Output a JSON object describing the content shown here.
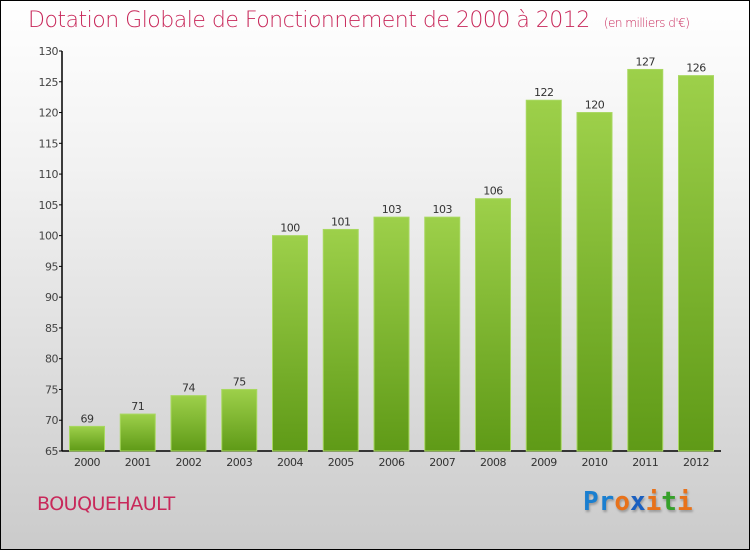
{
  "title": "Dotation Globale de Fonctionnement de 2000 à 2012",
  "subtitle": "(en milliers d'€)",
  "commune": "BOUQUEHAULT",
  "logo": {
    "text": "Proxiti",
    "letters": [
      "P",
      "r",
      "o",
      "x",
      "i",
      "t",
      "i"
    ],
    "colors": [
      "#1a7fd0",
      "#1a7fd0",
      "#e8721a",
      "#1a5fc0",
      "#e8721a",
      "#36a02a",
      "#e8721a"
    ]
  },
  "colors": {
    "bar_top": "#9dd04a",
    "bar_bottom": "#5f9a17",
    "title": "#c8285a"
  },
  "chart_data": {
    "type": "bar",
    "title": "Dotation Globale de Fonctionnement de 2000 à 2012",
    "xlabel": "",
    "ylabel": "",
    "categories": [
      "2000",
      "2001",
      "2002",
      "2003",
      "2004",
      "2005",
      "2006",
      "2007",
      "2008",
      "2009",
      "2010",
      "2011",
      "2012"
    ],
    "values": [
      69,
      71,
      74,
      75,
      100,
      101,
      103,
      103,
      106,
      122,
      120,
      127,
      126
    ],
    "ylim": [
      65,
      130
    ],
    "yticks": [
      65,
      70,
      75,
      80,
      85,
      90,
      95,
      100,
      105,
      110,
      115,
      120,
      125,
      130
    ],
    "grid": false
  }
}
